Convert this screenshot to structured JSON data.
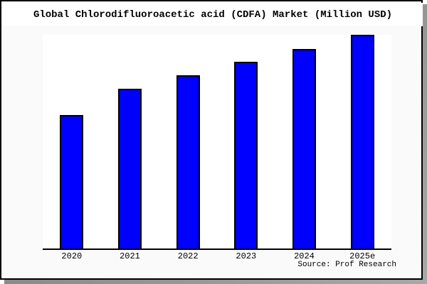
{
  "frame": {
    "border_color": "#000000",
    "shadow_color": "#999999",
    "background": "#fafafa",
    "title_band_background": "#ffffff"
  },
  "chart_data": {
    "type": "bar",
    "title": "Global Chlorodifluoroacetic acid (CDFA) Market (Million USD)",
    "categories": [
      "2020",
      "2021",
      "2022",
      "2023",
      "2024",
      "2025e"
    ],
    "values": [
      62.6,
      74.8,
      81.1,
      87.4,
      93.4,
      100
    ],
    "xlabel": "",
    "ylabel": "",
    "ylim": [
      0,
      100
    ],
    "grid": false,
    "legend": false,
    "bar_color": "#0000ff",
    "bar_border_color": "#000000",
    "plot_background": "#ffffff",
    "axis_color": "#000000"
  },
  "footer": {
    "source_label": "Source: Prof Research"
  }
}
